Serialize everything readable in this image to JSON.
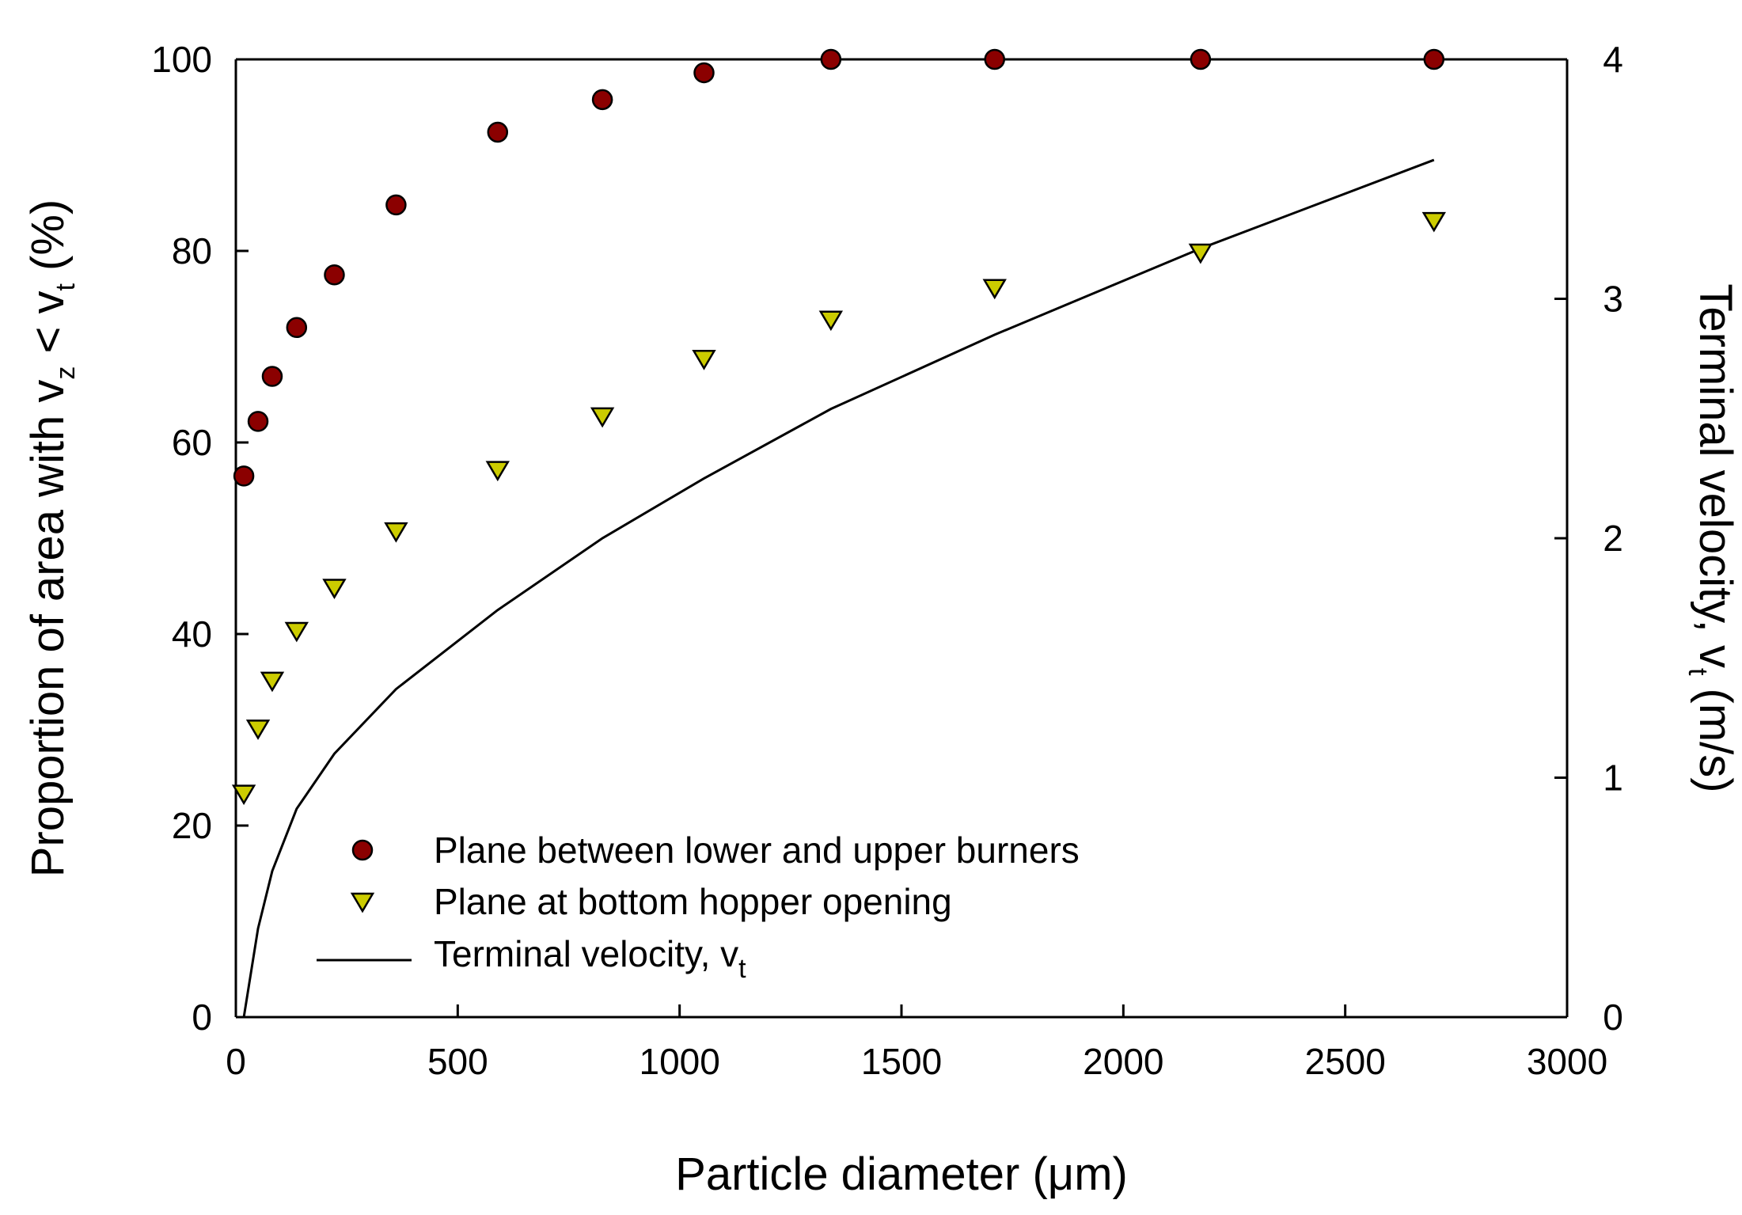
{
  "chart_data": {
    "type": "scatter",
    "xlabel": "Particle diameter (μm)",
    "ylabel": {
      "main": "Proportion of area with v",
      "sub1": "z",
      "mid": " < v",
      "sub2": "t",
      "tail": " (%)"
    },
    "y2label": {
      "main": "Terminal velocity, v",
      "sub": "t",
      "tail": " (m/s)"
    },
    "xlim": [
      0,
      3000
    ],
    "ylim": [
      0,
      100
    ],
    "y2lim": [
      0,
      4
    ],
    "xticks": [
      "0",
      "500",
      "1000",
      "1500",
      "2000",
      "2500",
      "3000"
    ],
    "yticks": [
      "0",
      "20",
      "40",
      "60",
      "80",
      "100"
    ],
    "y2ticks": [
      "0",
      "1",
      "2",
      "3",
      "4"
    ],
    "grid": false,
    "legend_position": "bottom-left",
    "series": [
      {
        "name": "Plane between lower and upper burners",
        "marker": "circle",
        "color": "#8b0000",
        "axis": "left",
        "x": [
          18,
          50,
          82,
          137,
          222,
          361,
          590,
          826,
          1055,
          1341,
          1710,
          2174,
          2700
        ],
        "y": [
          56.5,
          62.2,
          66.9,
          72.0,
          77.5,
          84.8,
          92.4,
          95.8,
          98.6,
          100,
          100,
          100,
          100
        ]
      },
      {
        "name": "Plane at bottom hopper opening",
        "marker": "triangle-down",
        "color": "#cccc00",
        "axis": "left",
        "x": [
          18,
          50,
          82,
          137,
          222,
          361,
          590,
          826,
          1055,
          1341,
          1710,
          2174,
          2700
        ],
        "y": [
          23.5,
          30.3,
          35.3,
          40.5,
          45.0,
          50.9,
          57.3,
          62.9,
          68.9,
          73.0,
          76.3,
          80.0,
          83.3
        ]
      },
      {
        "name": "Terminal velocity, v",
        "name_sub": "t",
        "marker": "line",
        "color": "#000000",
        "axis": "right",
        "x": [
          18,
          50,
          82,
          137,
          222,
          361,
          590,
          826,
          1055,
          1341,
          1710,
          2174,
          2700
        ],
        "y": [
          0,
          0.37,
          0.61,
          0.87,
          1.1,
          1.37,
          1.7,
          2.0,
          2.25,
          2.54,
          2.85,
          3.21,
          3.58
        ]
      }
    ]
  }
}
